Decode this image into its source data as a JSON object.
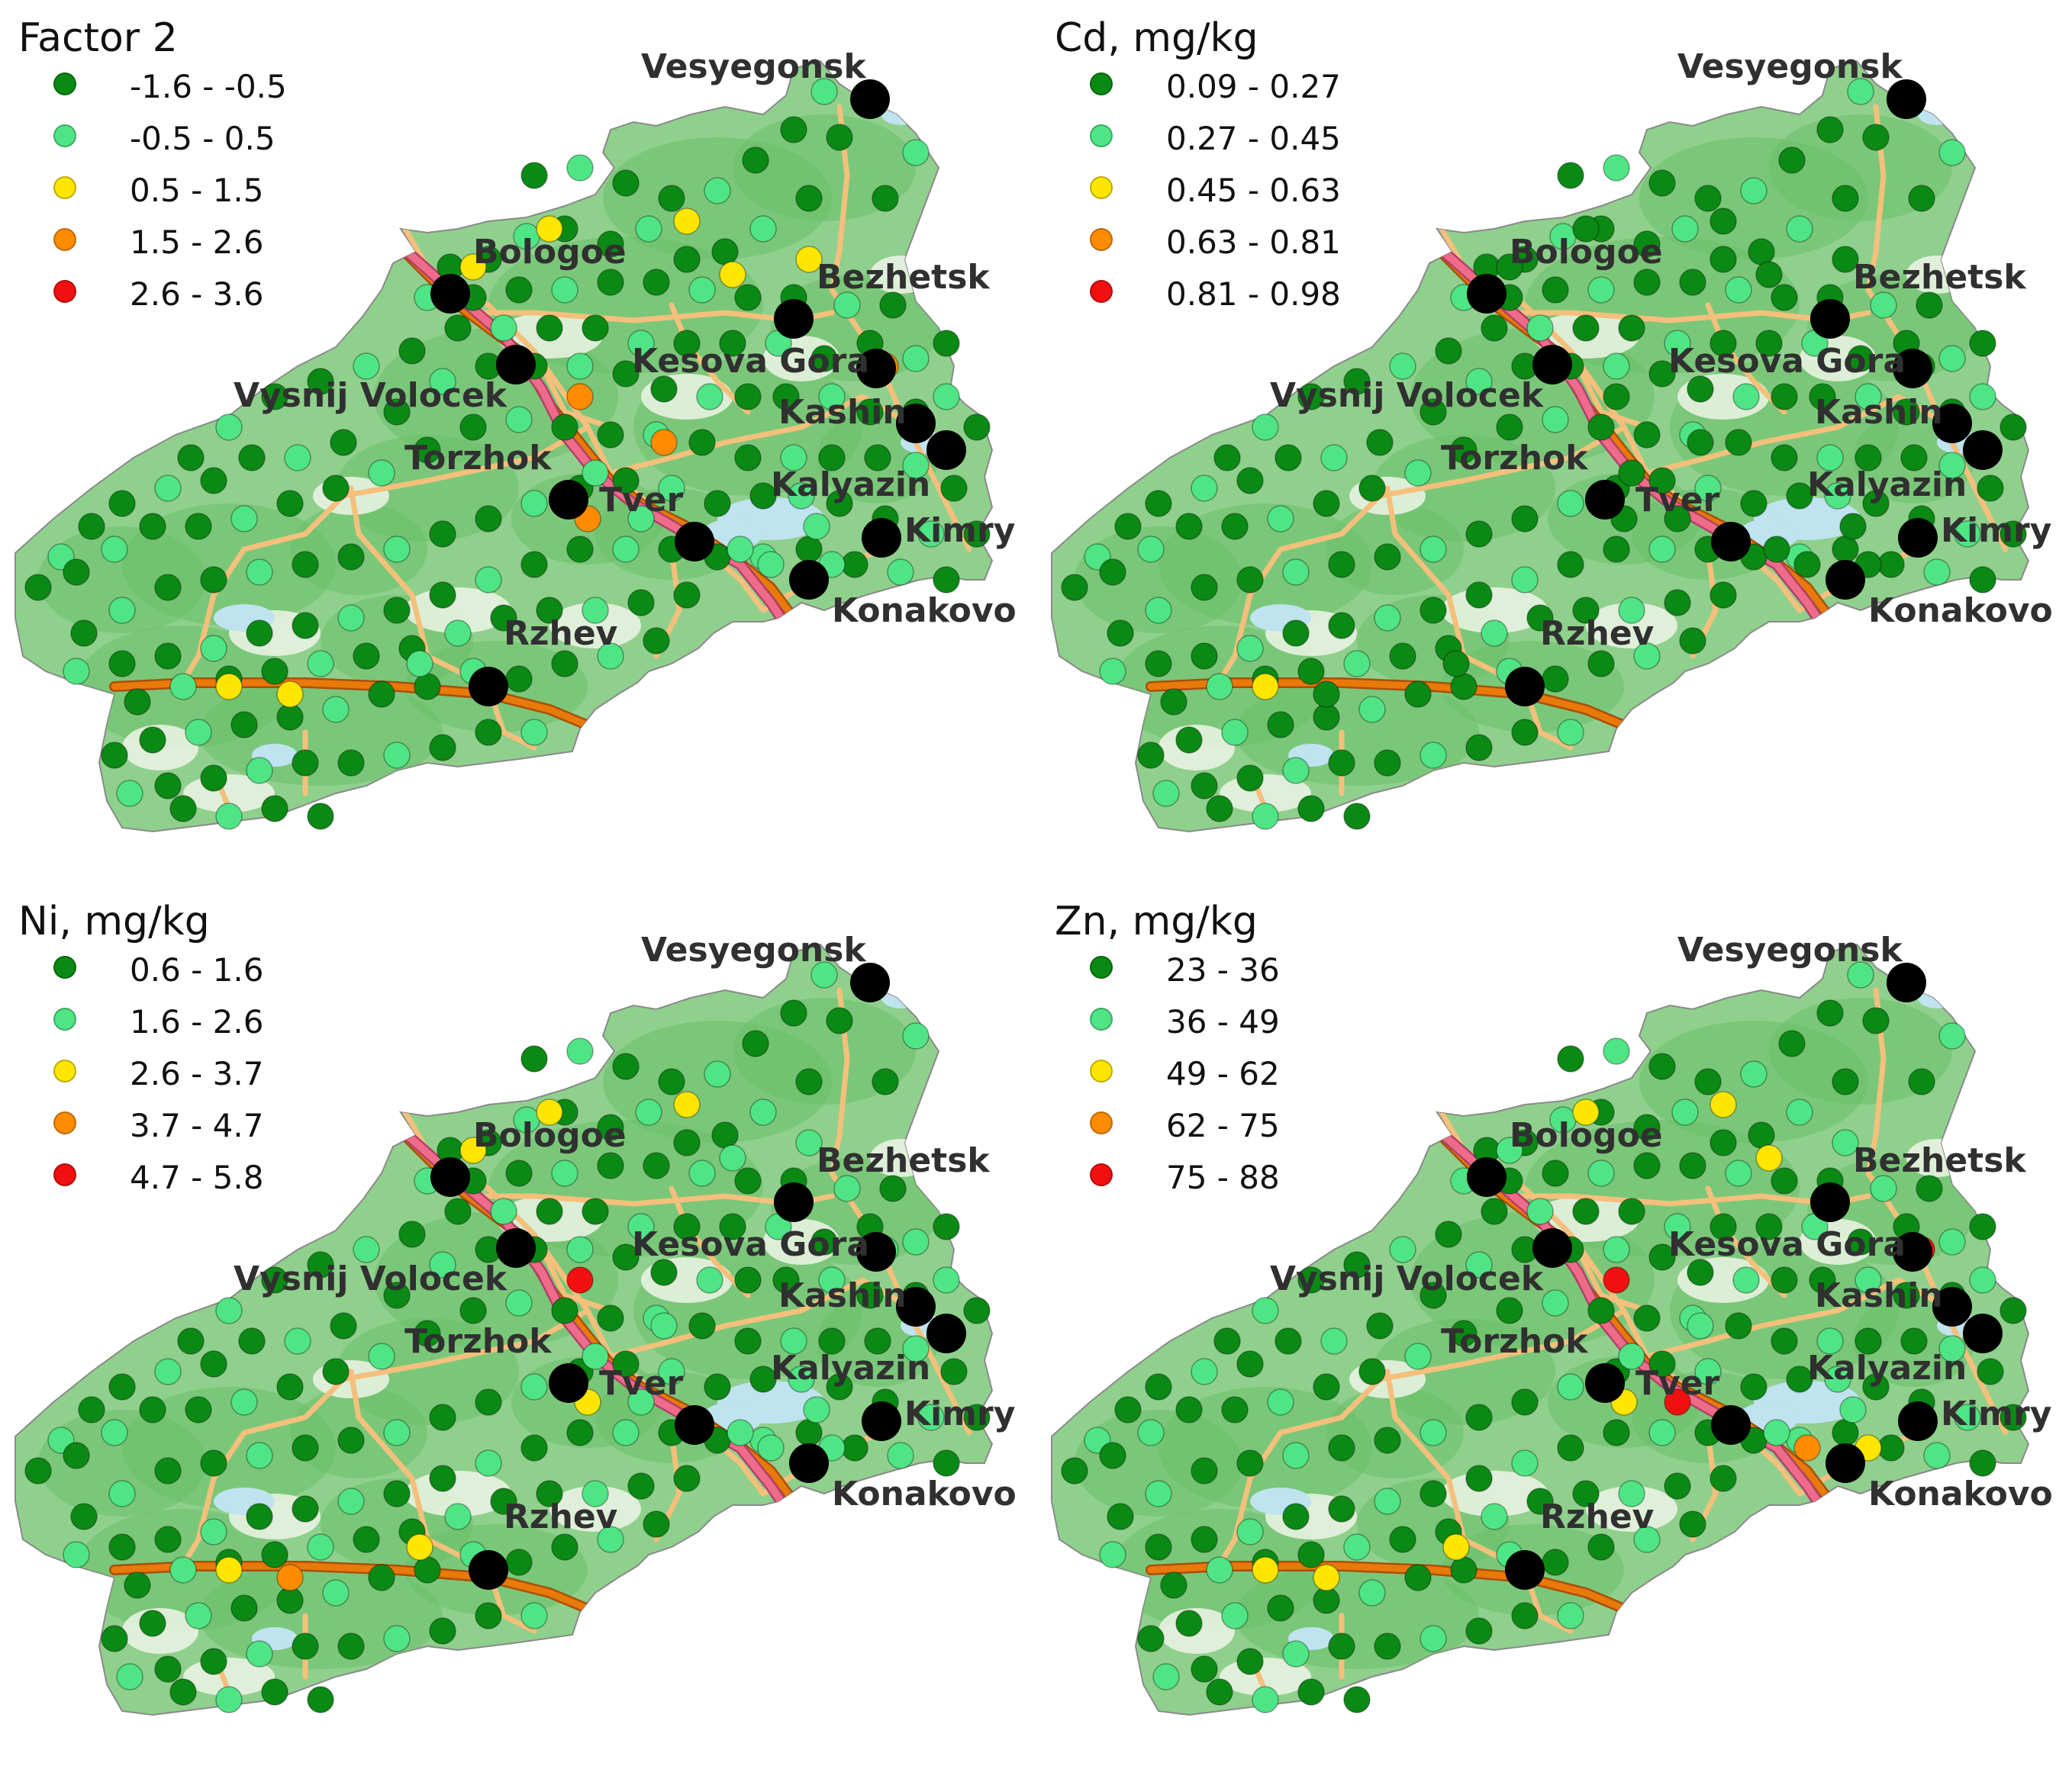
{
  "colors": {
    "class1": "#0a8a14",
    "class2": "#4fe585",
    "class3": "#ffe600",
    "class4": "#ff8c00",
    "class5": "#f01010",
    "city_marker": "#000000",
    "land": "#8fd08d",
    "forest": "#6cc06a",
    "open_land": "#eef4e8",
    "water": "#bfe3ef",
    "road_major": "#f4c07c",
    "highway_orange": "#e8790a",
    "highway_pink": "#ef6b8a"
  },
  "cities": [
    "Vesyegonsk",
    "Bologoe",
    "Bezhetsk",
    "Kesova Gora",
    "Vysnij Volocek",
    "Kashin",
    "Torzhok",
    "Kalyazin",
    "Tver",
    "Kimry",
    "Konakovo",
    "Rzhev"
  ],
  "panels": [
    {
      "title": "Factor 2",
      "legend": [
        "-1.6 - -0.5",
        "-0.5 - 0.5",
        "0.5 - 1.5",
        "1.5 - 2.6",
        "2.6 - 3.6"
      ],
      "hotspots": [
        3,
        3,
        3,
        3,
        3,
        4,
        4,
        4,
        4,
        2,
        2,
        2,
        2,
        2,
        2,
        2,
        3,
        3
      ]
    },
    {
      "title": "Cd, mg/kg",
      "legend": [
        "0.09 - 0.27",
        "0.27 - 0.45",
        "0.45 - 0.63",
        "0.63 - 0.81",
        "0.81 - 0.98"
      ],
      "hotspots": [
        1,
        1,
        1,
        1,
        1,
        1,
        1,
        1,
        1,
        1,
        1,
        1,
        1,
        1,
        1,
        1,
        3,
        1
      ]
    },
    {
      "title": "Ni, mg/kg",
      "legend": [
        "0.6 - 1.6",
        "1.6 - 2.6",
        "2.6 - 3.7",
        "3.7 - 4.7",
        "4.7 - 5.8"
      ],
      "hotspots": [
        3,
        3,
        3,
        2,
        2,
        5,
        2,
        2,
        3,
        2,
        2,
        2,
        2,
        2,
        2,
        3,
        3,
        4
      ]
    },
    {
      "title": "Zn, mg/kg",
      "legend": [
        "23 - 36",
        "36 - 49",
        "49 - 62",
        "62 - 75",
        "75 - 88"
      ],
      "hotspots": [
        3,
        2,
        3,
        2,
        3,
        5,
        2,
        5,
        3,
        2,
        5,
        2,
        4,
        2,
        3,
        3,
        3,
        3
      ]
    }
  ]
}
